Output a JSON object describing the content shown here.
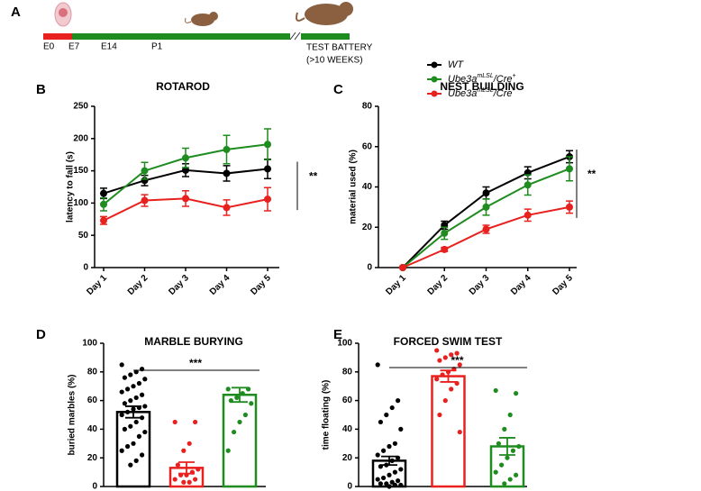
{
  "panel_labels": [
    "A",
    "B",
    "C",
    "D",
    "E"
  ],
  "timeline": {
    "labels": [
      "E0",
      "E7",
      "E14",
      "P1"
    ],
    "end_label": "TEST BATTERY",
    "end_sub": "(>10 WEEKS)"
  },
  "legend": [
    {
      "text": "WT",
      "color": "#000000"
    },
    {
      "text": "Ube3a",
      "sup": "mLSL",
      "text2": "/Cre",
      "sup2": "+",
      "color": "#1e8c1e"
    },
    {
      "text": "Ube3a",
      "sup": "mLSL",
      "text2": "/Cre",
      "sup2": "-",
      "color": "#e8201e"
    }
  ],
  "chart_data": [
    {
      "type": "line",
      "title": "ROTAROD",
      "y_label": "latency to fall (s)",
      "annotation": "**",
      "categories": [
        "Day 1",
        "Day 2",
        "Day 3",
        "Day 4",
        "Day 5"
      ],
      "ylim": [
        0,
        250
      ],
      "yticks": [
        0,
        50,
        100,
        150,
        200,
        250
      ],
      "series": [
        {
          "color": "#000000",
          "values": [
            115,
            135,
            151,
            146,
            153
          ],
          "errors": [
            8,
            8,
            10,
            12,
            15
          ]
        },
        {
          "color": "#1e8c1e",
          "values": [
            98,
            150,
            170,
            183,
            191
          ],
          "errors": [
            10,
            13,
            15,
            22,
            24
          ]
        },
        {
          "color": "#e8201e",
          "values": [
            73,
            104,
            107,
            93,
            106
          ],
          "errors": [
            6,
            9,
            12,
            12,
            18
          ]
        }
      ]
    },
    {
      "type": "line",
      "title": "NEST BUILDING",
      "y_label": "material used (%)",
      "annotation": "**",
      "categories": [
        "Day 1",
        "Day 2",
        "Day 3",
        "Day 4",
        "Day 5"
      ],
      "ylim": [
        0,
        80
      ],
      "yticks": [
        0,
        20,
        40,
        60,
        80
      ],
      "series": [
        {
          "color": "#000000",
          "values": [
            0,
            21,
            37,
            47,
            55
          ],
          "errors": [
            0,
            2,
            3,
            3,
            3
          ]
        },
        {
          "color": "#1e8c1e",
          "values": [
            0,
            17,
            30,
            41,
            49
          ],
          "errors": [
            0,
            3,
            4,
            5,
            6
          ]
        },
        {
          "color": "#e8201e",
          "values": [
            0,
            9,
            19,
            26,
            30
          ],
          "errors": [
            0,
            1,
            2,
            3,
            3
          ]
        }
      ]
    },
    {
      "type": "bar",
      "title": "MARBLE BURYING",
      "y_label": "buried marbles (%)",
      "annotation": "***",
      "categories": [
        null,
        null,
        null
      ],
      "colors": [
        "#000000",
        "#e8201e",
        "#1e8c1e"
      ],
      "values": [
        52,
        13,
        64
      ],
      "errors": [
        4,
        4,
        5
      ],
      "points": [
        [
          85,
          82,
          80,
          78,
          76,
          75,
          72,
          70,
          68,
          66,
          64,
          62,
          60,
          58,
          56,
          55,
          54,
          52,
          50,
          48,
          45,
          42,
          40,
          38,
          35,
          30,
          28,
          25,
          22,
          18,
          15
        ],
        [
          45,
          45,
          30,
          25,
          15,
          12,
          10,
          8,
          8,
          5,
          5,
          3,
          3
        ],
        [
          68,
          68,
          65,
          62,
          60,
          58,
          50,
          45,
          38,
          25
        ]
      ],
      "ylim": [
        0,
        100
      ],
      "yticks": [
        0,
        20,
        40,
        60,
        80,
        100
      ]
    },
    {
      "type": "bar",
      "title": "FORCED SWIM TEST",
      "y_label": "time floating (%)",
      "annotation": "***",
      "categories": [
        null,
        null,
        null
      ],
      "colors": [
        "#000000",
        "#e8201e",
        "#1e8c1e"
      ],
      "values": [
        18,
        77,
        28
      ],
      "errors": [
        3,
        4,
        6
      ],
      "points": [
        [
          85,
          60,
          55,
          50,
          45,
          40,
          30,
          28,
          25,
          22,
          20,
          18,
          15,
          14,
          12,
          10,
          8,
          6,
          5,
          4,
          3,
          2,
          2,
          1,
          1,
          0
        ],
        [
          95,
          93,
          92,
          90,
          88,
          85,
          82,
          80,
          78,
          75,
          72,
          68,
          60,
          50,
          38
        ],
        [
          67,
          65,
          50,
          40,
          30,
          28,
          25,
          20,
          15,
          10,
          8,
          5,
          2
        ]
      ],
      "ylim": [
        0,
        100
      ],
      "yticks": [
        0,
        20,
        40,
        60,
        80,
        100
      ]
    }
  ]
}
